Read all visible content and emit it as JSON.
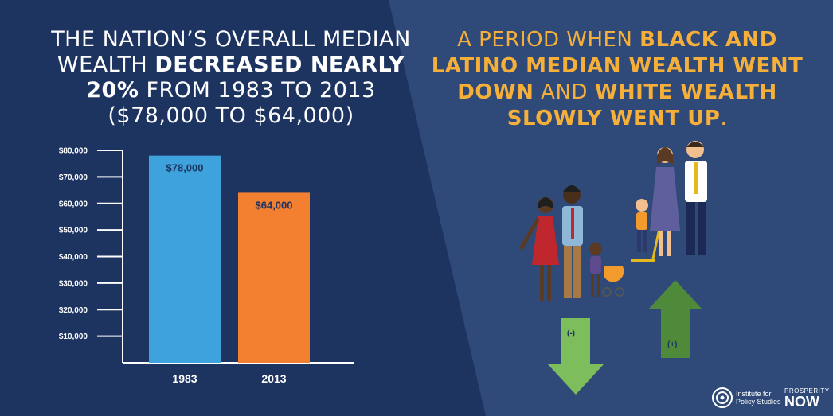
{
  "headline_left": {
    "part1": "THE NATION’S OVERALL MEDIAN WEALTH ",
    "bold1": "DECREASED NEARLY 20%",
    "part2": " FROM 1983 TO 2013 ($78,000 TO $64,000)"
  },
  "headline_right": {
    "part1": "A PERIOD WHEN ",
    "bold1": "BLACK AND LATINO MEDIAN WEALTH WENT DOWN",
    "part2": " AND ",
    "bold2": "WHITE WEALTH SLOWLY WENT UP",
    "part3": "."
  },
  "chart_data": {
    "type": "bar",
    "categories": [
      "1983",
      "2013"
    ],
    "values": [
      78000,
      64000
    ],
    "data_labels": [
      "$78,000",
      "$64,000"
    ],
    "colors": [
      "#3ea3dc",
      "#f37f30"
    ],
    "y_ticks": [
      10000,
      20000,
      30000,
      40000,
      50000,
      60000,
      70000,
      80000
    ],
    "y_tick_labels": [
      "$10,000",
      "$20,000",
      "$30,000",
      "$40,000",
      "$50,000",
      "$60,000",
      "$70,000",
      "$80,000"
    ],
    "ylim": [
      0,
      80000
    ],
    "title": "",
    "xlabel": "",
    "ylabel": "",
    "grid": false
  },
  "arrows": {
    "down_label": "(-)",
    "up_label": "(+)",
    "color": "#7dbd5b",
    "color_up": "#4e8a3a"
  },
  "logos": {
    "ips_line1": "Institute for",
    "ips_line2": "Policy Studies",
    "pn_top": "PROSPERITY",
    "pn_bottom": "NOW"
  },
  "colors": {
    "bg_left": "#1d3461",
    "bg_right": "#2f4a78",
    "accent": "#f6b03a"
  }
}
